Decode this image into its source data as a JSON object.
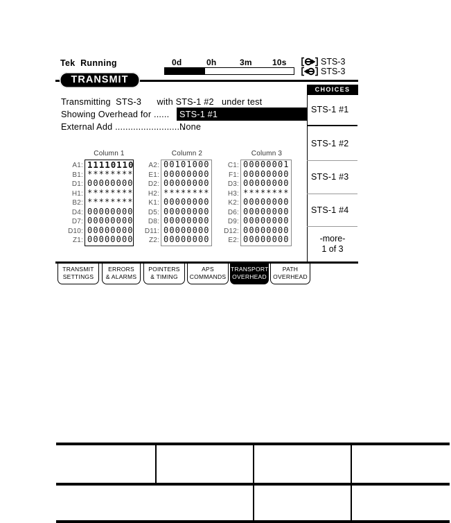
{
  "header": {
    "brand": "Tek",
    "status": "Running",
    "timer_labels": [
      "0d",
      "0h",
      "3m",
      "10s"
    ],
    "progress_percent": 31,
    "tx_label": "STS-3",
    "rx_label": "STS-3",
    "menu_title": "TRANSMIT"
  },
  "status": {
    "line1": "Transmitting  STS-3      with STS-1 #2   under test",
    "showing_label": "Showing Overhead for ......",
    "showing_value": "STS-1 #1",
    "external_label": "External Add ...........................",
    "external_value": "None"
  },
  "overhead": {
    "columns": [
      {
        "title": "Column 1",
        "rows": [
          {
            "label": "A1:",
            "value": "11110110"
          },
          {
            "label": "B1:",
            "value": "********"
          },
          {
            "label": "D1:",
            "value": "00000000"
          },
          {
            "label": "H1:",
            "value": "********"
          },
          {
            "label": "B2:",
            "value": "********"
          },
          {
            "label": "D4:",
            "value": "00000000"
          },
          {
            "label": "D7:",
            "value": "00000000"
          },
          {
            "label": "D10:",
            "value": "00000000"
          },
          {
            "label": "Z1:",
            "value": "00000000"
          }
        ]
      },
      {
        "title": "Column 2",
        "rows": [
          {
            "label": "A2:",
            "value": "00101000"
          },
          {
            "label": "E1:",
            "value": "00000000"
          },
          {
            "label": "D2:",
            "value": "00000000"
          },
          {
            "label": "H2:",
            "value": "********"
          },
          {
            "label": "K1:",
            "value": "00000000"
          },
          {
            "label": "D5:",
            "value": "00000000"
          },
          {
            "label": "D8:",
            "value": "00000000"
          },
          {
            "label": "D11:",
            "value": "00000000"
          },
          {
            "label": "Z2:",
            "value": "00000000"
          }
        ]
      },
      {
        "title": "Column 3",
        "rows": [
          {
            "label": "C1:",
            "value": "00000001"
          },
          {
            "label": "F1:",
            "value": "00000000"
          },
          {
            "label": "D3:",
            "value": "00000000"
          },
          {
            "label": "H3:",
            "value": "********"
          },
          {
            "label": "K2:",
            "value": "00000000"
          },
          {
            "label": "D6:",
            "value": "00000000"
          },
          {
            "label": "D9:",
            "value": "00000000"
          },
          {
            "label": "D12:",
            "value": "00000000"
          },
          {
            "label": "E2:",
            "value": "00000000"
          }
        ]
      }
    ]
  },
  "choices": {
    "title": "CHOICES",
    "items": [
      "STS-1 #1",
      "STS-1 #2",
      "STS-1 #3",
      "STS-1 #4"
    ],
    "more": "-more-",
    "page": "1 of 3"
  },
  "tabs": [
    {
      "line1": "TRANSMIT",
      "line2": "SETTINGS",
      "selected": false
    },
    {
      "line1": "ERRORS",
      "line2": "& ALARMS",
      "selected": false
    },
    {
      "line1": "POINTERS",
      "line2": "& TIMING",
      "selected": false
    },
    {
      "line1": "APS",
      "line2": "COMMANDS",
      "selected": false
    },
    {
      "line1": "TRANSPORT",
      "line2": "OVERHEAD",
      "selected": true
    },
    {
      "line1": "PATH",
      "line2": "OVERHEAD",
      "selected": false
    }
  ],
  "colors": {
    "ink": "#000000",
    "paper": "#ffffff",
    "muted_gray": "#555555",
    "border_gray": "#888888"
  }
}
